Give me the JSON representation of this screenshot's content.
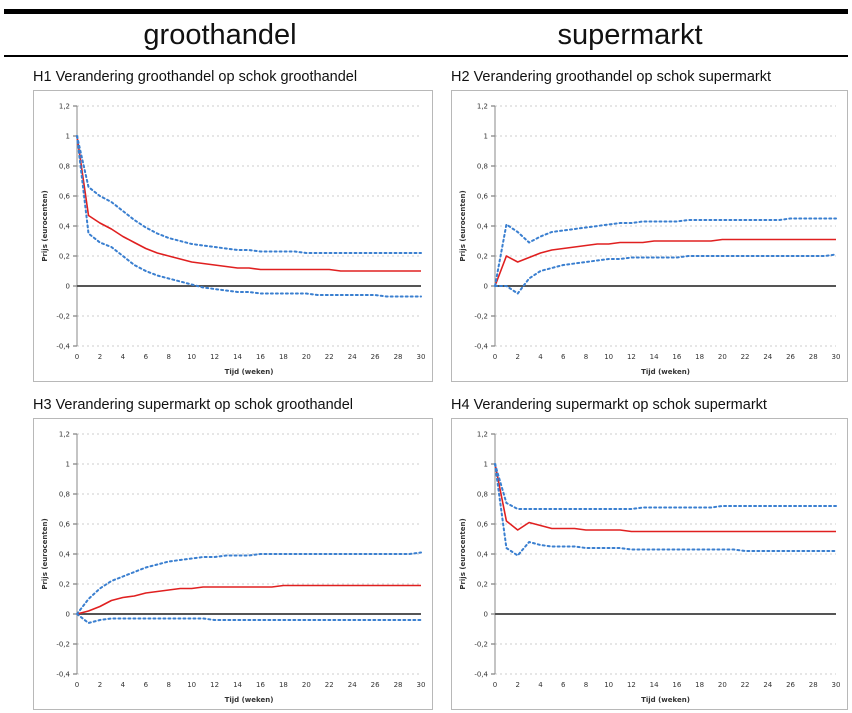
{
  "header": {
    "left_title": "groothandel",
    "right_title": "supermarkt"
  },
  "colors": {
    "response_line": "#e02020",
    "confidence_band": "#3a7fd0",
    "zero_line": "#555555",
    "gridline": "#cccccc"
  },
  "chart_data": [
    {
      "type": "line",
      "title": "H1 Verandering groothandel op schok groothandel",
      "xlabel": "Tijd (weken)",
      "ylabel": "Prijs (eurocenten)",
      "xlim": [
        0,
        30
      ],
      "ylim": [
        -0.4,
        1.2
      ],
      "xticks": [
        "0",
        "2",
        "4",
        "6",
        "8",
        "10",
        "12",
        "14",
        "16",
        "18",
        "20",
        "22",
        "24",
        "26",
        "28",
        "30"
      ],
      "yticks": [
        "1,2",
        "1",
        "0,8",
        "0,6",
        "0,4",
        "0,2",
        "0",
        "-0,2",
        "-0,4"
      ],
      "grid": "horizontal dotted",
      "x": [
        0,
        1,
        2,
        3,
        4,
        5,
        6,
        7,
        8,
        9,
        10,
        11,
        12,
        13,
        14,
        15,
        16,
        17,
        18,
        19,
        20,
        21,
        22,
        23,
        24,
        25,
        26,
        27,
        28,
        29,
        30
      ],
      "series": [
        {
          "role": "response",
          "style": "solid",
          "values": [
            1.0,
            0.47,
            0.42,
            0.38,
            0.33,
            0.29,
            0.25,
            0.22,
            0.2,
            0.18,
            0.16,
            0.15,
            0.14,
            0.13,
            0.12,
            0.12,
            0.11,
            0.11,
            0.11,
            0.11,
            0.11,
            0.11,
            0.11,
            0.1,
            0.1,
            0.1,
            0.1,
            0.1,
            0.1,
            0.1,
            0.1
          ]
        },
        {
          "role": "upper",
          "style": "dotted",
          "values": [
            1.0,
            0.66,
            0.6,
            0.56,
            0.5,
            0.44,
            0.39,
            0.35,
            0.32,
            0.3,
            0.28,
            0.27,
            0.26,
            0.25,
            0.24,
            0.24,
            0.23,
            0.23,
            0.23,
            0.23,
            0.22,
            0.22,
            0.22,
            0.22,
            0.22,
            0.22,
            0.22,
            0.22,
            0.22,
            0.22,
            0.22
          ]
        },
        {
          "role": "lower",
          "style": "dotted",
          "values": [
            1.0,
            0.35,
            0.29,
            0.26,
            0.2,
            0.14,
            0.1,
            0.07,
            0.05,
            0.03,
            0.01,
            -0.01,
            -0.02,
            -0.03,
            -0.04,
            -0.04,
            -0.05,
            -0.05,
            -0.05,
            -0.05,
            -0.05,
            -0.06,
            -0.06,
            -0.06,
            -0.06,
            -0.06,
            -0.06,
            -0.07,
            -0.07,
            -0.07,
            -0.07
          ]
        }
      ]
    },
    {
      "type": "line",
      "title": "H2 Verandering groothandel op schok supermarkt",
      "xlabel": "Tijd (weken)",
      "ylabel": "Prijs (eurocenten)",
      "xlim": [
        0,
        30
      ],
      "ylim": [
        -0.4,
        1.2
      ],
      "xticks": [
        "0",
        "2",
        "4",
        "6",
        "8",
        "10",
        "12",
        "14",
        "16",
        "18",
        "20",
        "22",
        "24",
        "26",
        "28",
        "30"
      ],
      "yticks": [
        "1,2",
        "1",
        "0,8",
        "0,6",
        "0,4",
        "0,2",
        "0",
        "-0,2",
        "-0,4"
      ],
      "grid": "horizontal dotted",
      "x": [
        0,
        1,
        2,
        3,
        4,
        5,
        6,
        7,
        8,
        9,
        10,
        11,
        12,
        13,
        14,
        15,
        16,
        17,
        18,
        19,
        20,
        21,
        22,
        23,
        24,
        25,
        26,
        27,
        28,
        29,
        30
      ],
      "series": [
        {
          "role": "response",
          "style": "solid",
          "values": [
            0.0,
            0.2,
            0.16,
            0.19,
            0.22,
            0.24,
            0.25,
            0.26,
            0.27,
            0.28,
            0.28,
            0.29,
            0.29,
            0.29,
            0.3,
            0.3,
            0.3,
            0.3,
            0.3,
            0.3,
            0.31,
            0.31,
            0.31,
            0.31,
            0.31,
            0.31,
            0.31,
            0.31,
            0.31,
            0.31,
            0.31
          ]
        },
        {
          "role": "upper",
          "style": "dotted",
          "values": [
            0.0,
            0.41,
            0.36,
            0.29,
            0.33,
            0.36,
            0.37,
            0.38,
            0.39,
            0.4,
            0.41,
            0.42,
            0.42,
            0.43,
            0.43,
            0.43,
            0.43,
            0.44,
            0.44,
            0.44,
            0.44,
            0.44,
            0.44,
            0.44,
            0.44,
            0.44,
            0.45,
            0.45,
            0.45,
            0.45,
            0.45
          ]
        },
        {
          "role": "lower",
          "style": "dotted",
          "values": [
            0.0,
            0.0,
            -0.05,
            0.05,
            0.1,
            0.12,
            0.14,
            0.15,
            0.16,
            0.17,
            0.18,
            0.18,
            0.19,
            0.19,
            0.19,
            0.19,
            0.19,
            0.2,
            0.2,
            0.2,
            0.2,
            0.2,
            0.2,
            0.2,
            0.2,
            0.2,
            0.2,
            0.2,
            0.2,
            0.2,
            0.21
          ]
        }
      ]
    },
    {
      "type": "line",
      "title": "H3 Verandering supermarkt op schok groothandel",
      "xlabel": "Tijd (weken)",
      "ylabel": "Prijs (eurocenten)",
      "xlim": [
        0,
        30
      ],
      "ylim": [
        -0.4,
        1.2
      ],
      "xticks": [
        "0",
        "2",
        "4",
        "6",
        "8",
        "10",
        "12",
        "14",
        "16",
        "18",
        "20",
        "22",
        "24",
        "26",
        "28",
        "30"
      ],
      "yticks": [
        "1,2",
        "1",
        "0,8",
        "0,6",
        "0,4",
        "0,2",
        "0",
        "-0,2",
        "-0,4"
      ],
      "grid": "horizontal dotted",
      "x": [
        0,
        1,
        2,
        3,
        4,
        5,
        6,
        7,
        8,
        9,
        10,
        11,
        12,
        13,
        14,
        15,
        16,
        17,
        18,
        19,
        20,
        21,
        22,
        23,
        24,
        25,
        26,
        27,
        28,
        29,
        30
      ],
      "series": [
        {
          "role": "response",
          "style": "solid",
          "values": [
            0.0,
            0.02,
            0.05,
            0.09,
            0.11,
            0.12,
            0.14,
            0.15,
            0.16,
            0.17,
            0.17,
            0.18,
            0.18,
            0.18,
            0.18,
            0.18,
            0.18,
            0.18,
            0.19,
            0.19,
            0.19,
            0.19,
            0.19,
            0.19,
            0.19,
            0.19,
            0.19,
            0.19,
            0.19,
            0.19,
            0.19
          ]
        },
        {
          "role": "upper",
          "style": "dotted",
          "values": [
            0.0,
            0.1,
            0.17,
            0.22,
            0.25,
            0.28,
            0.31,
            0.33,
            0.35,
            0.36,
            0.37,
            0.38,
            0.38,
            0.39,
            0.39,
            0.39,
            0.4,
            0.4,
            0.4,
            0.4,
            0.4,
            0.4,
            0.4,
            0.4,
            0.4,
            0.4,
            0.4,
            0.4,
            0.4,
            0.4,
            0.41
          ]
        },
        {
          "role": "lower",
          "style": "dotted",
          "values": [
            0.0,
            -0.06,
            -0.04,
            -0.03,
            -0.03,
            -0.03,
            -0.03,
            -0.03,
            -0.03,
            -0.03,
            -0.03,
            -0.03,
            -0.04,
            -0.04,
            -0.04,
            -0.04,
            -0.04,
            -0.04,
            -0.04,
            -0.04,
            -0.04,
            -0.04,
            -0.04,
            -0.04,
            -0.04,
            -0.04,
            -0.04,
            -0.04,
            -0.04,
            -0.04,
            -0.04
          ]
        }
      ]
    },
    {
      "type": "line",
      "title": "H4 Verandering supermarkt op schok supermarkt",
      "xlabel": "Tijd (weken)",
      "ylabel": "Prijs (eurocenten)",
      "xlim": [
        0,
        30
      ],
      "ylim": [
        -0.4,
        1.2
      ],
      "xticks": [
        "0",
        "2",
        "4",
        "6",
        "8",
        "10",
        "12",
        "14",
        "16",
        "18",
        "20",
        "22",
        "24",
        "26",
        "28",
        "30"
      ],
      "yticks": [
        "1,2",
        "1",
        "0,8",
        "0,6",
        "0,4",
        "0,2",
        "0",
        "-0,2",
        "-0,4"
      ],
      "grid": "horizontal dotted",
      "x": [
        0,
        1,
        2,
        3,
        4,
        5,
        6,
        7,
        8,
        9,
        10,
        11,
        12,
        13,
        14,
        15,
        16,
        17,
        18,
        19,
        20,
        21,
        22,
        23,
        24,
        25,
        26,
        27,
        28,
        29,
        30
      ],
      "series": [
        {
          "role": "response",
          "style": "solid",
          "values": [
            1.0,
            0.62,
            0.56,
            0.61,
            0.59,
            0.57,
            0.57,
            0.57,
            0.56,
            0.56,
            0.56,
            0.56,
            0.55,
            0.55,
            0.55,
            0.55,
            0.55,
            0.55,
            0.55,
            0.55,
            0.55,
            0.55,
            0.55,
            0.55,
            0.55,
            0.55,
            0.55,
            0.55,
            0.55,
            0.55,
            0.55
          ]
        },
        {
          "role": "upper",
          "style": "dotted",
          "values": [
            1.0,
            0.74,
            0.7,
            0.7,
            0.7,
            0.7,
            0.7,
            0.7,
            0.7,
            0.7,
            0.7,
            0.7,
            0.7,
            0.71,
            0.71,
            0.71,
            0.71,
            0.71,
            0.71,
            0.71,
            0.72,
            0.72,
            0.72,
            0.72,
            0.72,
            0.72,
            0.72,
            0.72,
            0.72,
            0.72,
            0.72
          ]
        },
        {
          "role": "lower",
          "style": "dotted",
          "values": [
            1.0,
            0.44,
            0.39,
            0.48,
            0.46,
            0.45,
            0.45,
            0.45,
            0.44,
            0.44,
            0.44,
            0.44,
            0.43,
            0.43,
            0.43,
            0.43,
            0.43,
            0.43,
            0.43,
            0.43,
            0.43,
            0.43,
            0.42,
            0.42,
            0.42,
            0.42,
            0.42,
            0.42,
            0.42,
            0.42,
            0.42
          ]
        }
      ]
    }
  ]
}
